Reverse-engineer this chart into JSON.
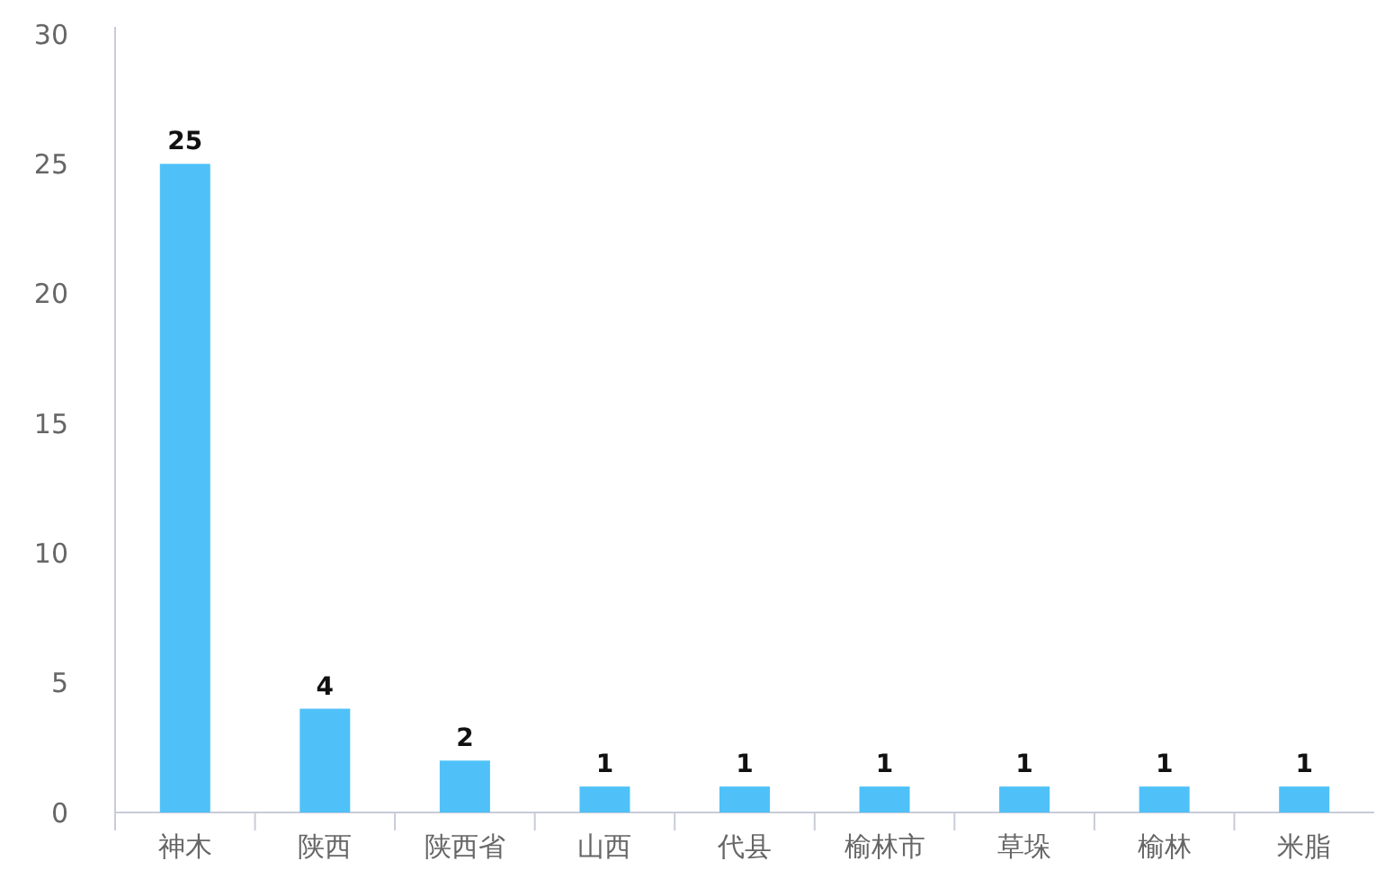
{
  "chart_data": {
    "type": "bar",
    "categories": [
      "神木",
      "陕西",
      "陕西省",
      "山西",
      "代县",
      "榆林市",
      "草垛",
      "榆林",
      "米脂"
    ],
    "values": [
      25,
      4,
      2,
      1,
      1,
      1,
      1,
      1,
      1
    ],
    "color": "#4fc1f8",
    "ylim": [
      0,
      30
    ],
    "yticks": [
      0,
      5,
      10,
      15,
      20,
      25,
      30
    ],
    "data_labels": true
  }
}
